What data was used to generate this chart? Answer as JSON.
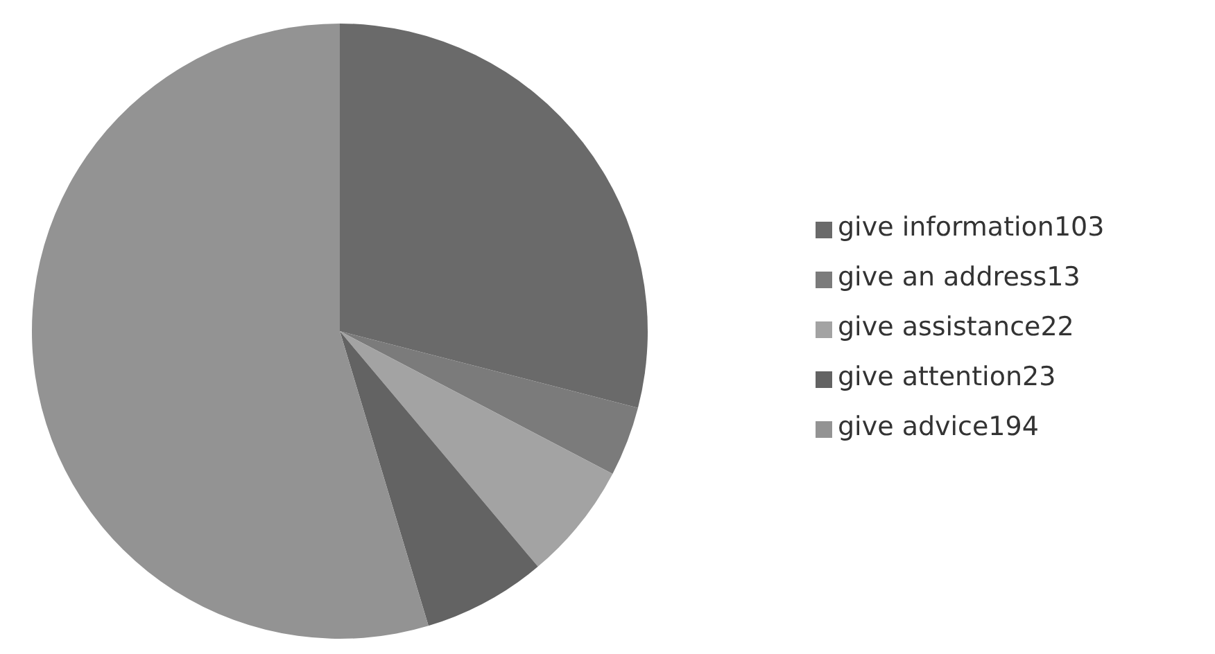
{
  "chart_data": {
    "type": "pie",
    "categories": [
      "give information103",
      "give an address13",
      "give assistance22",
      "give attention23",
      "give advice194"
    ],
    "values": [
      103,
      13,
      22,
      23,
      194
    ],
    "colors": [
      "#6a6a6a",
      "#7b7b7b",
      "#a3a3a3",
      "#636363",
      "#939393"
    ],
    "legend": "right"
  }
}
